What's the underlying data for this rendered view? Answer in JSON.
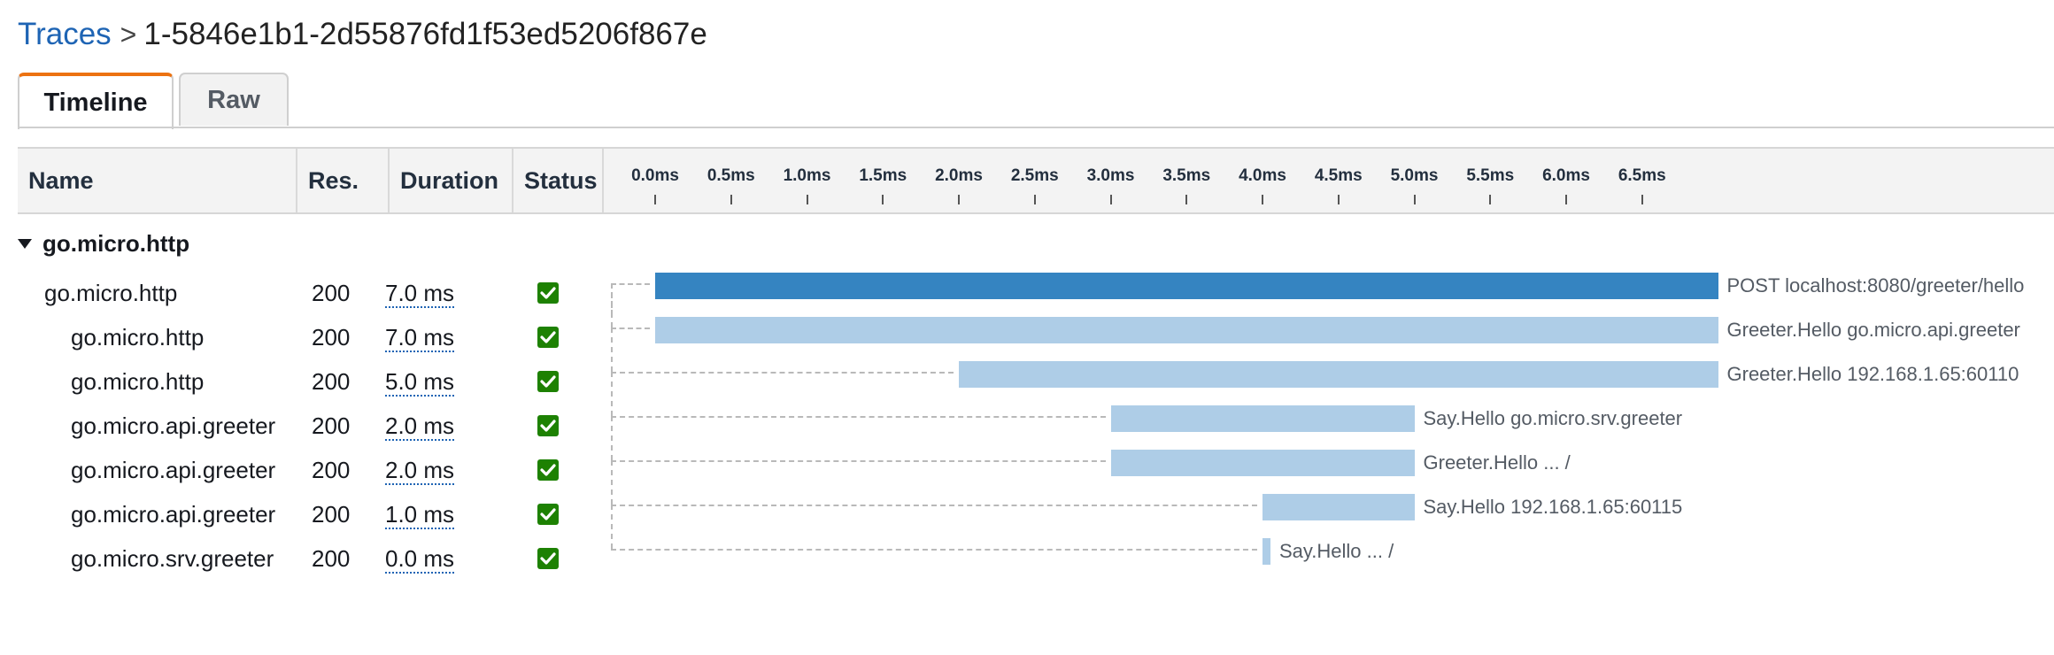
{
  "breadcrumb": {
    "root": "Traces",
    "separator": ">",
    "trace_id": "1-5846e1b1-2d55876fd1f53ed5206f867e"
  },
  "tabs": [
    {
      "label": "Timeline",
      "active": true
    },
    {
      "label": "Raw",
      "active": false
    }
  ],
  "columns": {
    "name": "Name",
    "res": "Res.",
    "duration": "Duration",
    "status": "Status"
  },
  "timeline_ticks": [
    "0.0ms",
    "0.5ms",
    "1.0ms",
    "1.5ms",
    "2.0ms",
    "2.5ms",
    "3.0ms",
    "3.5ms",
    "4.0ms",
    "4.5ms",
    "5.0ms",
    "5.5ms",
    "6.0ms",
    "6.5ms"
  ],
  "group": {
    "name": "go.micro.http",
    "expanded": true
  },
  "colors": {
    "root_bar": "#3584c1",
    "child_bar": "#aecde7",
    "status_ok": "#1d8102",
    "link": "#1e64b4",
    "tab_accent": "#ec7211"
  },
  "segments": [
    {
      "name": "go.micro.http",
      "res": "200",
      "duration": "7.0 ms",
      "status": "ok",
      "start_ms": 0.0,
      "duration_ms": 7.0,
      "label": "POST localhost:8080/greeter/hello",
      "root": true
    },
    {
      "name": "go.micro.http",
      "res": "200",
      "duration": "7.0 ms",
      "status": "ok",
      "start_ms": 0.0,
      "duration_ms": 7.0,
      "label": "Greeter.Hello go.micro.api.greeter",
      "root": false
    },
    {
      "name": "go.micro.http",
      "res": "200",
      "duration": "5.0 ms",
      "status": "ok",
      "start_ms": 2.0,
      "duration_ms": 5.0,
      "label": "Greeter.Hello 192.168.1.65:60110",
      "root": false
    },
    {
      "name": "go.micro.api.greeter",
      "res": "200",
      "duration": "2.0 ms",
      "status": "ok",
      "start_ms": 3.0,
      "duration_ms": 2.0,
      "label": "Say.Hello go.micro.srv.greeter",
      "root": false
    },
    {
      "name": "go.micro.api.greeter",
      "res": "200",
      "duration": "2.0 ms",
      "status": "ok",
      "start_ms": 3.0,
      "duration_ms": 2.0,
      "label": "Greeter.Hello ... /",
      "root": false
    },
    {
      "name": "go.micro.api.greeter",
      "res": "200",
      "duration": "1.0 ms",
      "status": "ok",
      "start_ms": 4.0,
      "duration_ms": 1.0,
      "label": "Say.Hello 192.168.1.65:60115",
      "root": false
    },
    {
      "name": "go.micro.srv.greeter",
      "res": "200",
      "duration": "0.0 ms",
      "status": "ok",
      "start_ms": 4.0,
      "duration_ms": 0.0,
      "label": "Say.Hello ... /",
      "root": false
    }
  ]
}
